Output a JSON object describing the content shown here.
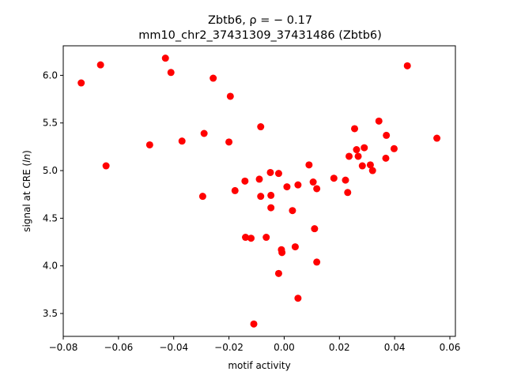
{
  "chart_data": {
    "type": "scatter",
    "title_line1": "Zbtb6, ρ = − 0.17",
    "title_line2": "mm10_chr2_37431309_37431486 (Zbtb6)",
    "xlabel": "motif activity",
    "ylabel_prefix": "signal at CRE (",
    "ylabel_italic": "ln",
    "ylabel_suffix": ")",
    "xlim": [
      -0.08,
      0.062
    ],
    "ylim": [
      3.26,
      6.31
    ],
    "x_ticks": [
      -0.08,
      -0.06,
      -0.04,
      -0.02,
      0.0,
      0.02,
      0.04,
      0.06
    ],
    "x_tick_labels": [
      "−0.08",
      "−0.06",
      "−0.04",
      "−0.02",
      "0.00",
      "0.02",
      "0.04",
      "0.06"
    ],
    "y_ticks": [
      3.5,
      4.0,
      4.5,
      5.0,
      5.5,
      6.0
    ],
    "y_tick_labels": [
      "3.5",
      "4.0",
      "4.5",
      "5.0",
      "5.5",
      "6.0"
    ],
    "point_color": "#ff0000",
    "points": [
      [
        -0.0735,
        5.92
      ],
      [
        -0.0665,
        6.11
      ],
      [
        -0.0645,
        5.05
      ],
      [
        -0.0487,
        5.27
      ],
      [
        -0.043,
        6.18
      ],
      [
        -0.041,
        6.03
      ],
      [
        -0.037,
        5.31
      ],
      [
        -0.0295,
        4.73
      ],
      [
        -0.029,
        5.39
      ],
      [
        -0.0257,
        5.97
      ],
      [
        -0.02,
        5.3
      ],
      [
        -0.0195,
        5.78
      ],
      [
        -0.0178,
        4.79
      ],
      [
        -0.0142,
        4.89
      ],
      [
        -0.014,
        4.3
      ],
      [
        -0.012,
        4.29
      ],
      [
        -0.011,
        3.39
      ],
      [
        -0.009,
        4.91
      ],
      [
        -0.0085,
        5.46
      ],
      [
        -0.0085,
        4.73
      ],
      [
        -0.0065,
        4.3
      ],
      [
        -0.005,
        4.98
      ],
      [
        -0.0048,
        4.74
      ],
      [
        -0.0048,
        4.61
      ],
      [
        -0.002,
        4.97
      ],
      [
        -0.002,
        3.92
      ],
      [
        -0.001,
        4.17
      ],
      [
        -0.0008,
        4.14
      ],
      [
        0.001,
        4.83
      ],
      [
        0.003,
        4.58
      ],
      [
        0.004,
        4.2
      ],
      [
        0.005,
        4.85
      ],
      [
        0.005,
        3.66
      ],
      [
        0.009,
        5.06
      ],
      [
        0.0105,
        4.88
      ],
      [
        0.011,
        4.39
      ],
      [
        0.0118,
        4.81
      ],
      [
        0.0118,
        4.04
      ],
      [
        0.018,
        4.92
      ],
      [
        0.0222,
        4.9
      ],
      [
        0.023,
        4.77
      ],
      [
        0.0235,
        5.15
      ],
      [
        0.0255,
        5.44
      ],
      [
        0.0262,
        5.22
      ],
      [
        0.0268,
        5.15
      ],
      [
        0.0283,
        5.05
      ],
      [
        0.029,
        5.24
      ],
      [
        0.0312,
        5.06
      ],
      [
        0.032,
        5.0
      ],
      [
        0.0343,
        5.52
      ],
      [
        0.0368,
        5.13
      ],
      [
        0.037,
        5.37
      ],
      [
        0.0398,
        5.23
      ],
      [
        0.0446,
        6.1
      ],
      [
        0.0553,
        5.34
      ]
    ]
  }
}
